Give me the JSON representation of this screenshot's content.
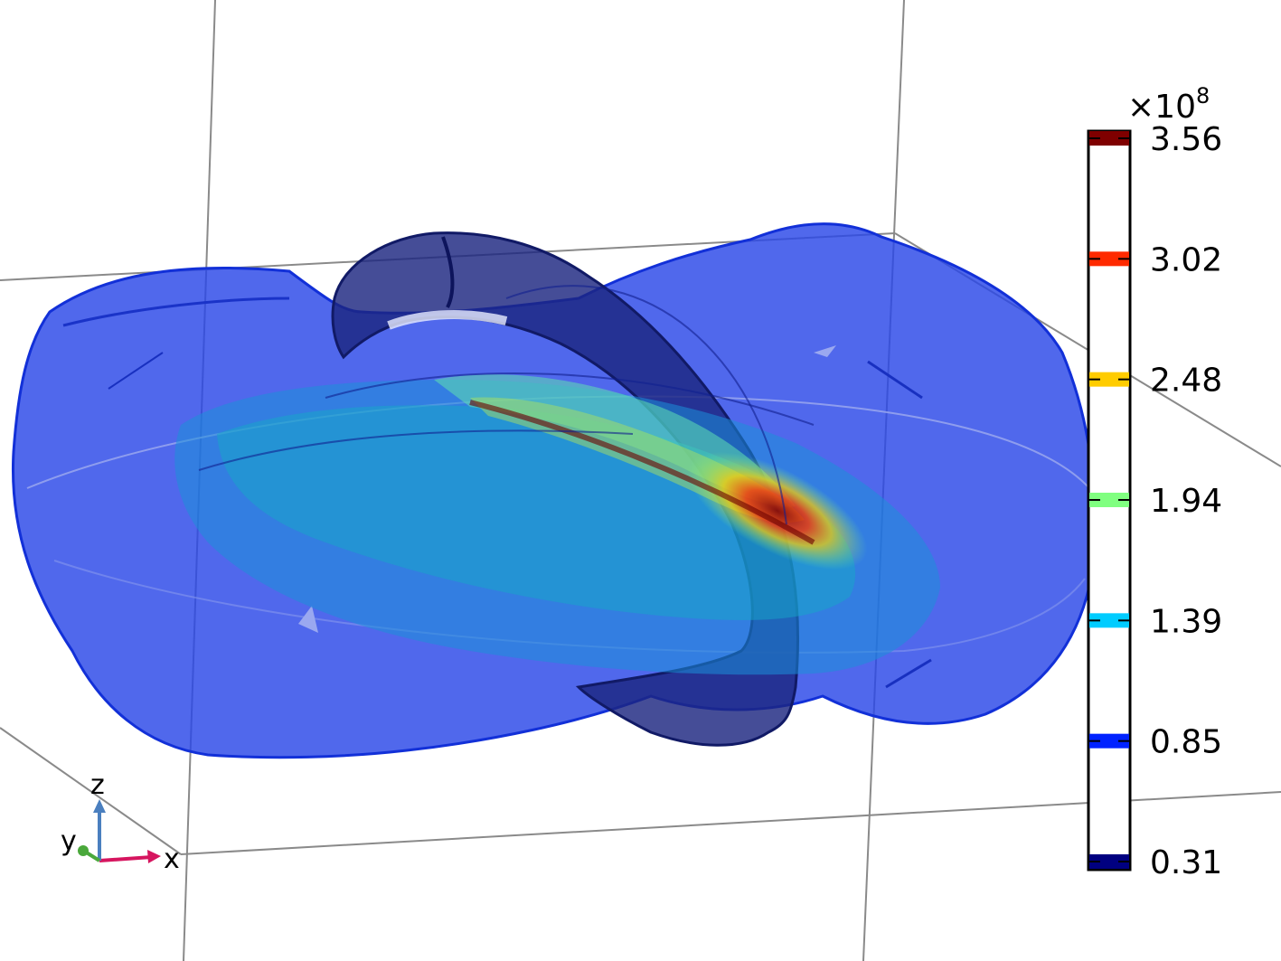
{
  "triad": {
    "x_label": "x",
    "y_label": "y",
    "z_label": "z",
    "x_color": "#d6155f",
    "y_color": "#4aa83b",
    "z_color": "#4a7fbf"
  },
  "colorbar": {
    "multiplier_base": "×10",
    "multiplier_exp": "8",
    "levels": [
      {
        "label": "3.56",
        "color": "#7f0000"
      },
      {
        "label": "3.02",
        "color": "#ff2a00"
      },
      {
        "label": "2.48",
        "color": "#ffcc00"
      },
      {
        "label": "1.94",
        "color": "#80ff80"
      },
      {
        "label": "1.39",
        "color": "#00ccff"
      },
      {
        "label": "0.85",
        "color": "#0022ff"
      },
      {
        "label": "0.31",
        "color": "#000080"
      }
    ]
  }
}
